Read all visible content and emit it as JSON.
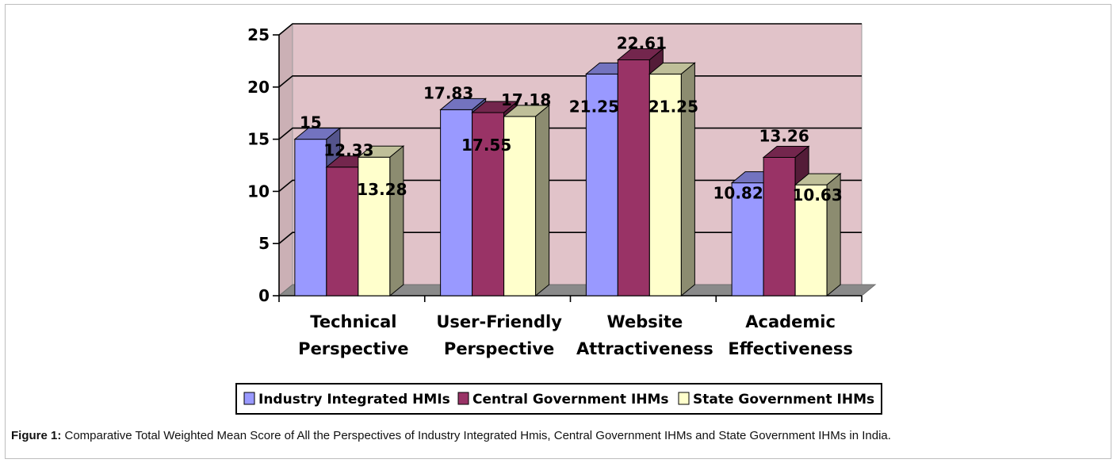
{
  "colors": {
    "wall": "#e1c3c9",
    "floor": "#8a8a8a",
    "series": [
      "#9999ff",
      "#993366",
      "#ffffcc"
    ]
  },
  "chart_data": {
    "type": "bar",
    "title": "",
    "xlabel": "",
    "ylabel": "",
    "ylim": [
      0,
      25
    ],
    "yticks": [
      "0",
      "5",
      "10",
      "15",
      "20",
      "25"
    ],
    "categories": [
      [
        "Technical",
        "Perspective"
      ],
      [
        "User-Friendly",
        "Perspective"
      ],
      [
        "Website",
        "Attractiveness"
      ],
      [
        "Academic",
        "Effectiveness"
      ]
    ],
    "series": [
      {
        "name": "Industry Integrated HMIs",
        "values": [
          15,
          17.83,
          21.25,
          10.82
        ],
        "labels": [
          "15",
          "17.83",
          "21.25",
          "10.82"
        ]
      },
      {
        "name": "Central Government IHMs",
        "values": [
          12.33,
          17.55,
          22.61,
          13.26
        ],
        "labels": [
          "12.33",
          "17.55",
          "22.61",
          "13.26"
        ]
      },
      {
        "name": "State Government IHMs",
        "values": [
          13.28,
          17.18,
          21.25,
          10.63
        ],
        "labels": [
          "13.28",
          "17.18",
          "21.25",
          "10.63"
        ]
      }
    ],
    "legend_position": "bottom"
  },
  "caption": {
    "label": "Figure 1:",
    "text": " Comparative Total Weighted Mean Score of All the Perspectives of Industry Integrated Hmis, Central Government IHMs and State Government IHMs in India."
  }
}
